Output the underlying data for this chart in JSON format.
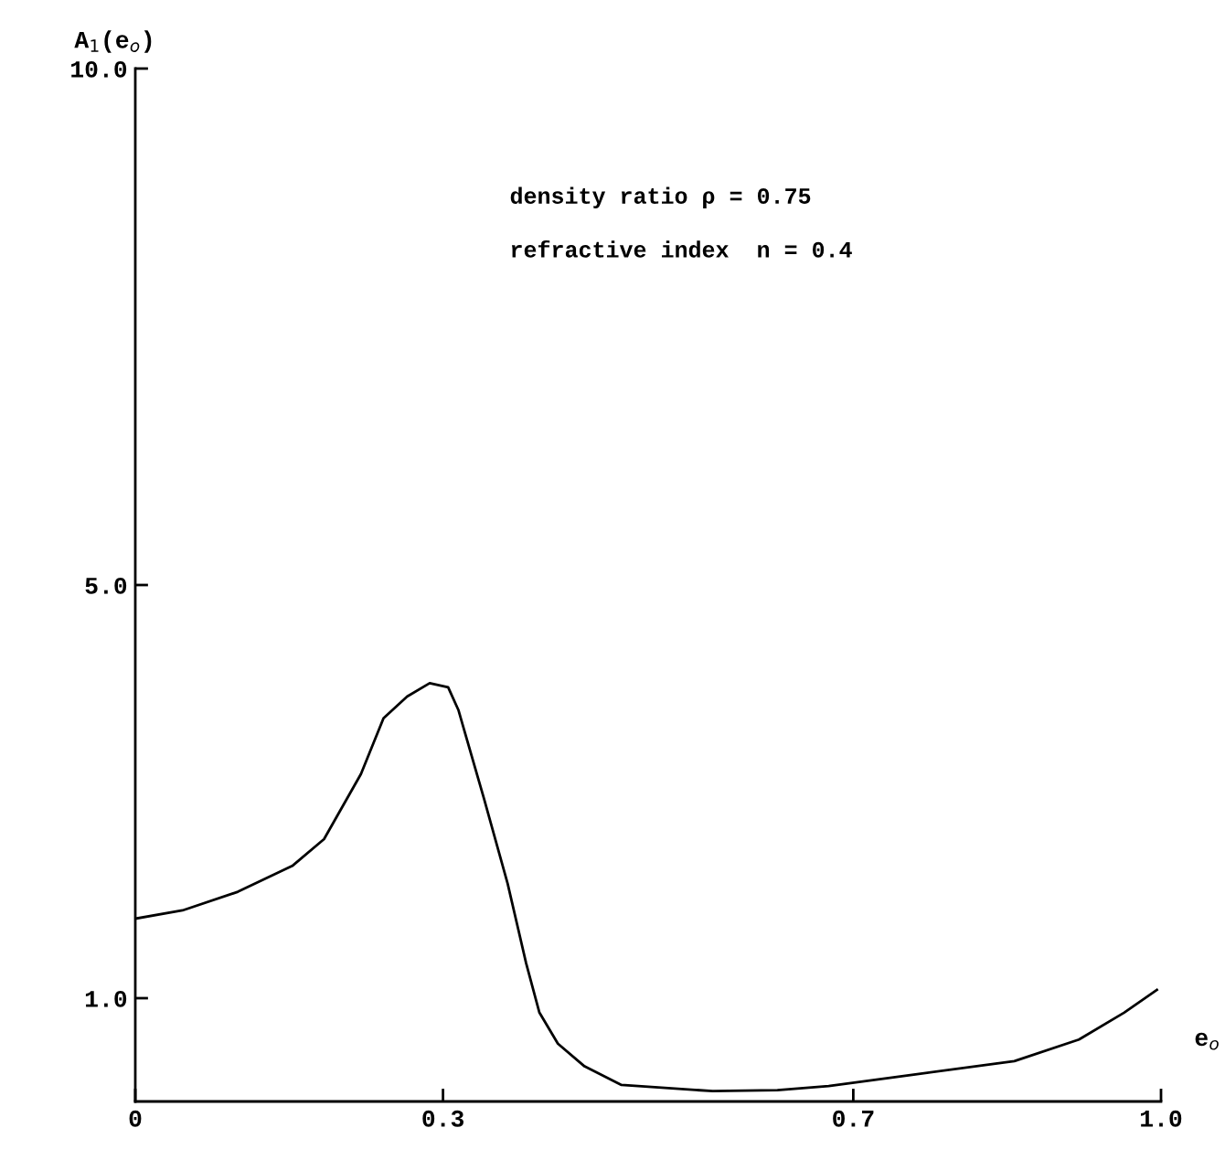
{
  "chart_data": {
    "type": "line",
    "xlabel": "e$_{o}$",
    "ylabel": "A$_{1}$(e$_{o}$)",
    "annotations": [
      "density ratio ρ = 0.75",
      "refractive index  n = 0.4"
    ],
    "x": [
      0,
      0.046,
      0.1,
      0.153,
      0.184,
      0.22,
      0.242,
      0.265,
      0.287,
      0.305,
      0.315,
      0.34,
      0.363,
      0.381,
      0.394,
      0.412,
      0.438,
      0.474,
      0.563,
      0.626,
      0.676,
      0.759,
      0.857,
      0.92,
      0.964,
      0.996
    ],
    "series": [
      {
        "color": "#000000",
        "values": [
          1.77,
          1.85,
          2.03,
          2.28,
          2.54,
          3.17,
          3.71,
          3.92,
          4.05,
          4.01,
          3.79,
          2.93,
          2.11,
          1.34,
          0.86,
          0.56,
          0.34,
          0.16,
          0.1,
          0.11,
          0.15,
          0.26,
          0.39,
          0.6,
          0.86,
          1.08
        ]
      }
    ],
    "xlim": [
      0,
      1.0
    ],
    "ylim": [
      0,
      10.0
    ],
    "xticks": [
      0,
      {
        "value": 0.3,
        "label": "0.3"
      },
      {
        "value": 0.7,
        "label": "0.7"
      },
      {
        "value": 1.0,
        "label": "1.0"
      }
    ],
    "yticks": [
      {
        "value": 1,
        "label": "1.0"
      },
      {
        "value": 5,
        "label": "5.0"
      },
      {
        "value": 10,
        "label": "10.0"
      }
    ],
    "grid": false,
    "legend": false,
    "marker": "none",
    "line_style": "solid"
  }
}
